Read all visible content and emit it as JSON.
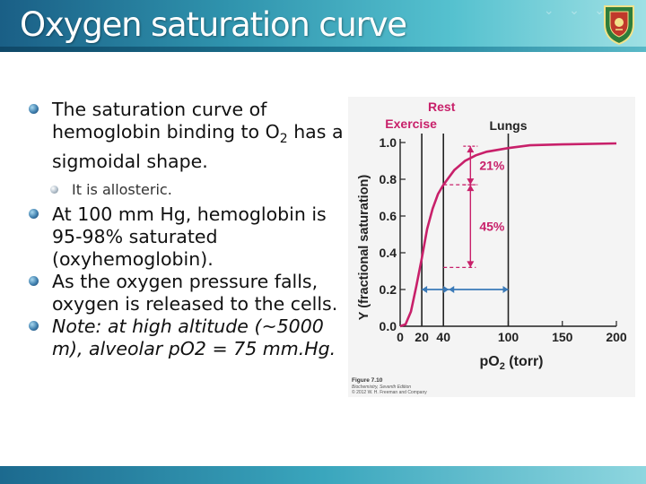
{
  "slide": {
    "title": "Oxygen saturation curve",
    "bullets": [
      {
        "level": 1,
        "text_pre": "The saturation curve of hemoglobin binding to O",
        "sub": "2",
        "text_post": " has a sigmoidal shape."
      },
      {
        "level": 2,
        "text": "It is allosteric."
      },
      {
        "level": 1,
        "text": "At 100 mm Hg, hemoglobin is 95-98% saturated (oxyhemoglobin)."
      },
      {
        "level": 1,
        "text": "As the oxygen pressure falls, oxygen is released to the cells."
      },
      {
        "level": 1,
        "italic": true,
        "text": "Note: at high altitude (~5000 m), alveolar pO2 = 75 mm.Hg."
      }
    ]
  },
  "figure": {
    "caption_title": "Figure 7.10",
    "caption_book": "Biochemistry, Seventh Edition",
    "caption_copyright": "© 2012 W. H. Freeman and Company"
  },
  "colors": {
    "curve": "#c8206a",
    "annotation": "#c8206a",
    "lungs_arrow": "#3a7ab8",
    "header": "#2f93ad"
  },
  "chart_data": {
    "type": "line",
    "xlabel_main": "pO",
    "xlabel_sub": "2",
    "xlabel_unit": " (torr)",
    "ylabel": "Y (fractional saturation)",
    "xlim": [
      0,
      200
    ],
    "ylim": [
      0,
      1.0
    ],
    "xticks": [
      0,
      20,
      40,
      100,
      150,
      200
    ],
    "yticks": [
      "0.0",
      "0.2",
      "0.4",
      "0.6",
      "0.8",
      "1.0"
    ],
    "series": [
      {
        "values": [
          [
            0,
            0
          ],
          [
            5,
            0.01
          ],
          [
            10,
            0.08
          ],
          [
            15,
            0.22
          ],
          [
            20,
            0.37
          ],
          [
            25,
            0.53
          ],
          [
            30,
            0.64
          ],
          [
            35,
            0.72
          ],
          [
            40,
            0.77
          ],
          [
            50,
            0.85
          ],
          [
            60,
            0.9
          ],
          [
            70,
            0.93
          ],
          [
            80,
            0.95
          ],
          [
            100,
            0.97
          ],
          [
            120,
            0.985
          ],
          [
            150,
            0.99
          ],
          [
            200,
            0.995
          ]
        ]
      }
    ],
    "vlines": [
      {
        "x": 20,
        "label": "Exercise"
      },
      {
        "x": 40,
        "label": "Rest"
      },
      {
        "x": 100,
        "label": "Lungs"
      }
    ],
    "annotations": [
      {
        "label": "21%",
        "from": 0.77,
        "to": 0.98
      },
      {
        "label": "45%",
        "from": 0.32,
        "to": 0.77
      }
    ]
  }
}
